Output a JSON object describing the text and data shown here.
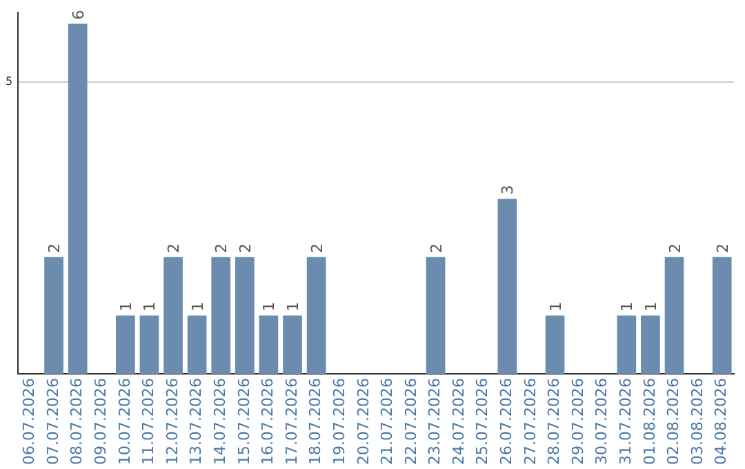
{
  "chart_data": {
    "type": "bar",
    "categories": [
      "06.07.2026",
      "07.07.2026",
      "08.07.2026",
      "09.07.2026",
      "10.07.2026",
      "11.07.2026",
      "12.07.2026",
      "13.07.2026",
      "14.07.2026",
      "15.07.2026",
      "16.07.2026",
      "17.07.2026",
      "18.07.2026",
      "19.07.2026",
      "20.07.2026",
      "21.07.2026",
      "22.07.2026",
      "23.07.2026",
      "24.07.2026",
      "25.07.2026",
      "26.07.2026",
      "27.07.2026",
      "28.07.2026",
      "29.07.2026",
      "30.07.2026",
      "31.07.2026",
      "01.08.2026",
      "02.08.2026",
      "03.08.2026",
      "04.08.2026"
    ],
    "values": [
      0,
      2,
      6,
      0,
      1,
      1,
      2,
      1,
      2,
      2,
      1,
      1,
      2,
      0,
      0,
      0,
      0,
      2,
      0,
      0,
      3,
      0,
      1,
      0,
      0,
      1,
      1,
      2,
      0,
      2
    ],
    "value_labels": [
      null,
      "2",
      "6",
      null,
      "1",
      "1",
      "2",
      "1",
      "2",
      "2",
      "1",
      "1",
      "2",
      null,
      null,
      null,
      null,
      "2",
      null,
      null,
      "3",
      null,
      "1",
      null,
      null,
      "1",
      "1",
      "2",
      null,
      "2"
    ],
    "color": "#6b8cae",
    "ylim": [
      0,
      6.2
    ],
    "yticks": [
      5
    ],
    "grid": "y",
    "legend": false
  }
}
